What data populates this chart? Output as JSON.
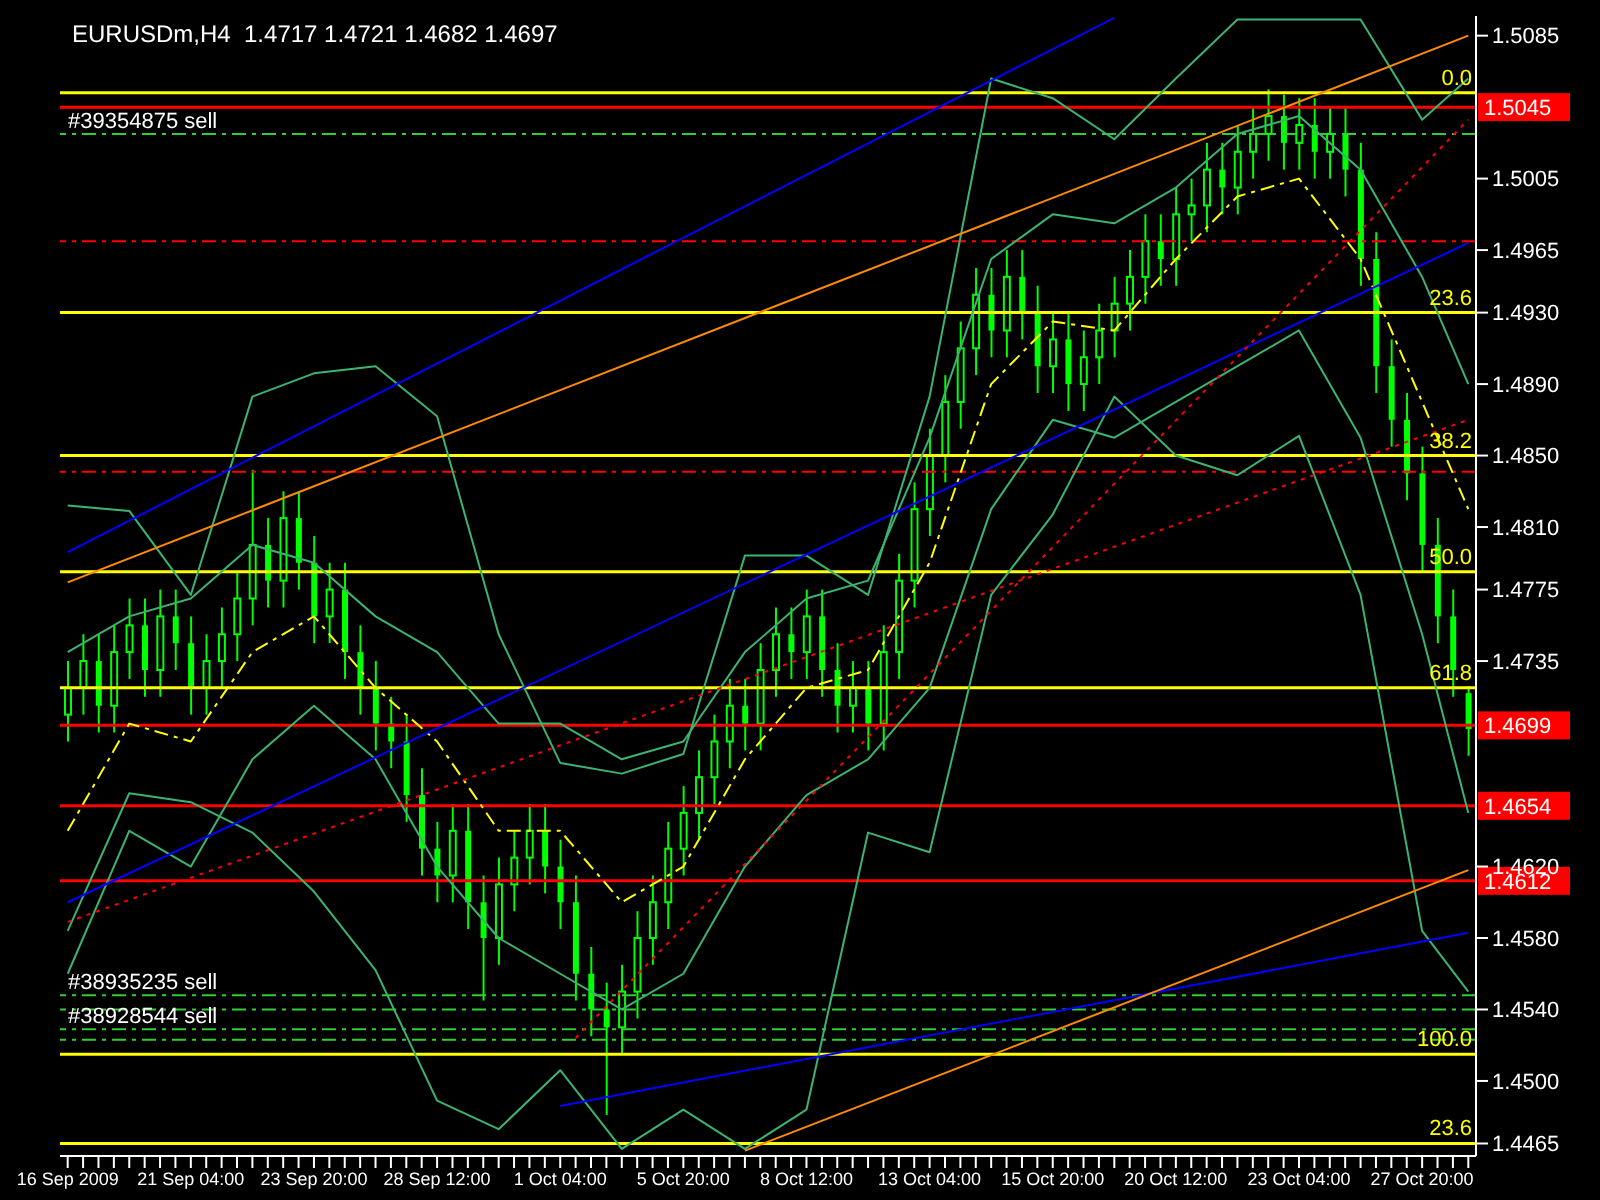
{
  "chart_data": {
    "type": "candlestick",
    "title": "EURUSDm,H4  1.4717 1.4721 1.4682 1.4697",
    "color": "#00ff00",
    "categories": [
      "16 Sep 2009",
      null,
      null,
      null,
      null,
      null,
      null,
      null,
      "21 Sep 04:00",
      null,
      null,
      null,
      null,
      null,
      null,
      null,
      "23 Sep 20:00",
      null,
      null,
      null,
      null,
      null,
      null,
      null,
      "28 Sep 12:00",
      null,
      null,
      null,
      null,
      null,
      null,
      null,
      "1 Oct 04:00",
      null,
      null,
      null,
      null,
      null,
      null,
      null,
      "5 Oct 20:00",
      null,
      null,
      null,
      null,
      null,
      null,
      null,
      "8 Oct 12:00",
      null,
      null,
      null,
      null,
      null,
      null,
      null,
      "13 Oct 04:00",
      null,
      null,
      null,
      null,
      null,
      null,
      null,
      "15 Oct 20:00",
      null,
      null,
      null,
      null,
      null,
      null,
      null,
      "20 Oct 12:00",
      null,
      null,
      null,
      null,
      null,
      null,
      null,
      "23 Oct 04:00",
      null,
      null,
      null,
      null,
      null,
      null,
      null,
      "27 Oct 20:00",
      null,
      null,
      null
    ],
    "ohlc": [
      [
        1.4705,
        1.4735,
        1.469,
        1.472
      ],
      [
        1.472,
        1.475,
        1.4705,
        1.4735
      ],
      [
        1.4735,
        1.475,
        1.4695,
        1.471
      ],
      [
        1.471,
        1.4755,
        1.4695,
        1.474
      ],
      [
        1.474,
        1.477,
        1.4725,
        1.4755
      ],
      [
        1.4755,
        1.477,
        1.4715,
        1.473
      ],
      [
        1.473,
        1.4775,
        1.4715,
        1.476
      ],
      [
        1.476,
        1.4775,
        1.473,
        1.4745
      ],
      [
        1.4745,
        1.476,
        1.4705,
        1.472
      ],
      [
        1.472,
        1.475,
        1.4705,
        1.4735
      ],
      [
        1.4735,
        1.4765,
        1.472,
        1.475
      ],
      [
        1.475,
        1.4785,
        1.4735,
        1.477
      ],
      [
        1.477,
        1.4842,
        1.4755,
        1.48
      ],
      [
        1.48,
        1.4815,
        1.4765,
        1.478
      ],
      [
        1.478,
        1.483,
        1.4765,
        1.4815
      ],
      [
        1.4815,
        1.483,
        1.4775,
        1.479
      ],
      [
        1.479,
        1.4805,
        1.4745,
        1.476
      ],
      [
        1.476,
        1.479,
        1.4745,
        1.4775
      ],
      [
        1.4775,
        1.479,
        1.4725,
        1.474
      ],
      [
        1.474,
        1.4755,
        1.4705,
        1.472
      ],
      [
        1.472,
        1.4735,
        1.4685,
        1.47
      ],
      [
        1.47,
        1.4715,
        1.4675,
        1.469
      ],
      [
        1.469,
        1.4705,
        1.4645,
        1.466
      ],
      [
        1.466,
        1.4675,
        1.4615,
        1.463
      ],
      [
        1.463,
        1.4645,
        1.46,
        1.4615
      ],
      [
        1.4615,
        1.4655,
        1.46,
        1.464
      ],
      [
        1.464,
        1.4655,
        1.4585,
        1.46
      ],
      [
        1.46,
        1.4615,
        1.4545,
        1.458
      ],
      [
        1.458,
        1.4625,
        1.4565,
        1.461
      ],
      [
        1.461,
        1.464,
        1.4595,
        1.4625
      ],
      [
        1.4625,
        1.4655,
        1.461,
        1.464
      ],
      [
        1.464,
        1.4655,
        1.4605,
        1.462
      ],
      [
        1.462,
        1.4635,
        1.4585,
        1.46
      ],
      [
        1.46,
        1.4615,
        1.4545,
        1.456
      ],
      [
        1.456,
        1.4575,
        1.4525,
        1.454
      ],
      [
        1.454,
        1.4555,
        1.4481,
        1.453
      ],
      [
        1.453,
        1.4565,
        1.4515,
        1.455
      ],
      [
        1.455,
        1.4595,
        1.4535,
        1.458
      ],
      [
        1.458,
        1.4615,
        1.4565,
        1.46
      ],
      [
        1.46,
        1.4645,
        1.4585,
        1.463
      ],
      [
        1.463,
        1.4665,
        1.4615,
        1.465
      ],
      [
        1.465,
        1.4685,
        1.4635,
        1.467
      ],
      [
        1.467,
        1.4705,
        1.4655,
        1.469
      ],
      [
        1.469,
        1.4725,
        1.4675,
        1.471
      ],
      [
        1.471,
        1.4725,
        1.4685,
        1.47
      ],
      [
        1.47,
        1.4745,
        1.4685,
        1.473
      ],
      [
        1.473,
        1.4765,
        1.4715,
        1.475
      ],
      [
        1.475,
        1.4765,
        1.4725,
        1.474
      ],
      [
        1.474,
        1.4775,
        1.4725,
        1.476
      ],
      [
        1.476,
        1.4775,
        1.4715,
        1.473
      ],
      [
        1.473,
        1.4745,
        1.4695,
        1.471
      ],
      [
        1.471,
        1.4735,
        1.4695,
        1.472
      ],
      [
        1.472,
        1.4735,
        1.4685,
        1.47
      ],
      [
        1.47,
        1.4755,
        1.4685,
        1.474
      ],
      [
        1.474,
        1.4795,
        1.4725,
        1.478
      ],
      [
        1.478,
        1.4835,
        1.4765,
        1.482
      ],
      [
        1.482,
        1.4865,
        1.4805,
        1.485
      ],
      [
        1.485,
        1.4895,
        1.4835,
        1.488
      ],
      [
        1.488,
        1.4925,
        1.4865,
        1.491
      ],
      [
        1.491,
        1.4955,
        1.4895,
        1.494
      ],
      [
        1.494,
        1.4955,
        1.4905,
        1.492
      ],
      [
        1.492,
        1.4965,
        1.4905,
        1.495
      ],
      [
        1.495,
        1.4965,
        1.4915,
        1.493
      ],
      [
        1.493,
        1.4945,
        1.4885,
        1.49
      ],
      [
        1.49,
        1.493,
        1.4885,
        1.4915
      ],
      [
        1.4915,
        1.493,
        1.4875,
        1.489
      ],
      [
        1.489,
        1.492,
        1.4875,
        1.4905
      ],
      [
        1.4905,
        1.4935,
        1.489,
        1.492
      ],
      [
        1.492,
        1.495,
        1.4905,
        1.4935
      ],
      [
        1.4935,
        1.4965,
        1.492,
        1.495
      ],
      [
        1.495,
        1.4985,
        1.4935,
        1.497
      ],
      [
        1.497,
        1.4985,
        1.4945,
        1.496
      ],
      [
        1.496,
        1.5,
        1.4945,
        1.4985
      ],
      [
        1.4985,
        1.5005,
        1.497,
        1.499
      ],
      [
        1.499,
        1.5025,
        1.4975,
        1.501
      ],
      [
        1.501,
        1.5025,
        1.4985,
        1.5
      ],
      [
        1.5,
        1.5035,
        1.4985,
        1.502
      ],
      [
        1.502,
        1.5045,
        1.5005,
        1.503
      ],
      [
        1.503,
        1.5055,
        1.5015,
        1.504
      ],
      [
        1.504,
        1.5052,
        1.501,
        1.5025
      ],
      [
        1.5025,
        1.505,
        1.501,
        1.5035
      ],
      [
        1.5035,
        1.505,
        1.5005,
        1.502
      ],
      [
        1.502,
        1.5045,
        1.5005,
        1.503
      ],
      [
        1.503,
        1.5045,
        1.4995,
        1.501
      ],
      [
        1.501,
        1.5025,
        1.4945,
        1.496
      ],
      [
        1.496,
        1.4975,
        1.4885,
        1.49
      ],
      [
        1.49,
        1.4915,
        1.4855,
        1.487
      ],
      [
        1.487,
        1.4885,
        1.4825,
        1.484
      ],
      [
        1.484,
        1.4855,
        1.4785,
        1.48
      ],
      [
        1.48,
        1.4815,
        1.4745,
        1.476
      ],
      [
        1.476,
        1.4775,
        1.4715,
        1.473
      ],
      [
        1.4717,
        1.4721,
        1.4682,
        1.4697
      ]
    ],
    "series": [
      {
        "type": "line",
        "color": "#3cb371",
        "values": [
          1.4822,
          null,
          null,
          null,
          1.4819,
          null,
          null,
          null,
          1.4772,
          null,
          null,
          null,
          1.4883,
          null,
          null,
          null,
          1.4896,
          null,
          null,
          null,
          1.49,
          null,
          null,
          null,
          1.4872,
          null,
          null,
          null,
          1.475,
          null,
          null,
          null,
          1.4678,
          null,
          null,
          null,
          1.4672,
          null,
          null,
          null,
          1.4683,
          null,
          null,
          null,
          1.4794,
          null,
          null,
          null,
          1.4794,
          null,
          null,
          null,
          1.4772,
          null,
          null,
          null,
          1.4883,
          null,
          null,
          null,
          1.5061,
          null,
          null,
          null,
          1.505,
          null,
          null,
          null,
          1.5027,
          null,
          null,
          null,
          1.5061,
          null,
          null,
          null,
          1.5094,
          null,
          null,
          null,
          1.5094,
          null,
          null,
          null,
          1.5094,
          null,
          null,
          null,
          1.5038,
          null,
          null,
          1.5061
        ]
      },
      {
        "type": "line",
        "color": "#3cb371",
        "values": [
          1.474,
          null,
          null,
          null,
          1.476,
          null,
          null,
          null,
          1.477,
          null,
          null,
          null,
          1.48,
          null,
          null,
          null,
          1.479,
          null,
          null,
          null,
          1.476,
          null,
          null,
          null,
          1.474,
          null,
          null,
          null,
          1.47,
          null,
          null,
          null,
          1.47,
          null,
          null,
          null,
          1.468,
          null,
          null,
          null,
          1.469,
          null,
          null,
          null,
          1.474,
          null,
          null,
          null,
          1.477,
          null,
          null,
          null,
          1.478,
          null,
          null,
          null,
          1.486,
          null,
          null,
          null,
          1.496,
          null,
          null,
          null,
          1.4985,
          null,
          null,
          null,
          1.498,
          null,
          null,
          null,
          1.5,
          null,
          null,
          null,
          1.503,
          null,
          null,
          null,
          1.504,
          null,
          null,
          null,
          1.501,
          null,
          null,
          null,
          1.495,
          null,
          null,
          1.489
        ]
      },
      {
        "type": "line",
        "color": "#3cb371",
        "values": [
          1.456,
          null,
          null,
          null,
          1.464,
          null,
          null,
          null,
          1.462,
          null,
          null,
          null,
          1.468,
          null,
          null,
          null,
          1.471,
          null,
          null,
          null,
          1.468,
          null,
          null,
          null,
          1.462,
          null,
          null,
          null,
          1.458,
          null,
          null,
          null,
          1.456,
          null,
          null,
          null,
          1.454,
          null,
          null,
          null,
          1.456,
          null,
          null,
          null,
          1.462,
          null,
          null,
          null,
          1.466,
          null,
          null,
          null,
          1.468,
          null,
          null,
          null,
          1.472,
          null,
          null,
          null,
          1.482,
          null,
          null,
          null,
          1.487,
          null,
          null,
          null,
          1.486,
          null,
          null,
          null,
          1.488,
          null,
          null,
          null,
          1.49,
          null,
          null,
          null,
          1.492,
          null,
          null,
          null,
          1.486,
          null,
          null,
          null,
          1.475,
          null,
          null,
          1.465
        ]
      },
      {
        "type": "line",
        "color": "#3cb371",
        "values": [
          1.4584,
          null,
          null,
          null,
          1.4661,
          null,
          null,
          null,
          1.4656,
          null,
          null,
          null,
          1.4639,
          null,
          null,
          null,
          1.4606,
          null,
          null,
          null,
          1.4562,
          null,
          null,
          null,
          1.4489,
          null,
          null,
          null,
          1.4473,
          null,
          null,
          null,
          1.4506,
          null,
          null,
          null,
          1.4462,
          null,
          null,
          null,
          1.4484,
          null,
          null,
          null,
          1.4462,
          null,
          null,
          null,
          1.4484,
          null,
          null,
          null,
          1.4639,
          null,
          null,
          null,
          1.4628,
          null,
          null,
          null,
          1.4772,
          null,
          null,
          null,
          1.4817,
          null,
          null,
          null,
          1.4883,
          null,
          null,
          null,
          1.485,
          null,
          null,
          null,
          1.4839,
          null,
          null,
          null,
          1.4861,
          null,
          null,
          null,
          1.4772,
          null,
          null,
          null,
          1.4584,
          null,
          null,
          1.455
        ]
      },
      {
        "type": "line",
        "color": "#ffff00",
        "line_style": "dashed",
        "values": [
          1.464,
          null,
          null,
          null,
          1.47,
          null,
          null,
          null,
          1.469,
          null,
          null,
          null,
          1.474,
          null,
          null,
          null,
          1.476,
          null,
          null,
          null,
          1.472,
          null,
          null,
          null,
          1.469,
          null,
          null,
          null,
          1.464,
          null,
          null,
          null,
          1.464,
          null,
          null,
          null,
          1.46,
          null,
          null,
          null,
          1.462,
          null,
          null,
          null,
          1.468,
          null,
          null,
          null,
          1.472,
          null,
          null,
          null,
          1.473,
          null,
          null,
          null,
          1.479,
          null,
          null,
          null,
          1.489,
          null,
          null,
          null,
          1.4925,
          null,
          null,
          null,
          1.492,
          null,
          null,
          null,
          1.496,
          null,
          null,
          null,
          1.4995,
          null,
          null,
          null,
          1.5005,
          null,
          null,
          null,
          1.496,
          null,
          null,
          null,
          1.488,
          null,
          null,
          1.482
        ]
      },
      {
        "type": "line",
        "color": "#0000ff",
        "values": [
          1.4796,
          null,
          null,
          null,
          null,
          null,
          null,
          null,
          null,
          null,
          null,
          null,
          null,
          null,
          null,
          null,
          null,
          null,
          null,
          null,
          null,
          null,
          null,
          null,
          null,
          null,
          null,
          null,
          null,
          null,
          null,
          null,
          null,
          null,
          null,
          null,
          null,
          null,
          null,
          null,
          null,
          null,
          null,
          null,
          null,
          null,
          null,
          null,
          null,
          null,
          null,
          null,
          null,
          null,
          null,
          null,
          null,
          null,
          null,
          null,
          null,
          null,
          null,
          null,
          null,
          null,
          null,
          null,
          1.5095,
          null,
          null,
          null,
          null,
          null,
          null,
          null,
          null,
          null,
          null,
          null,
          null,
          null,
          null,
          null,
          null,
          null,
          null,
          null,
          null,
          null,
          null,
          null
        ]
      },
      {
        "type": "line",
        "color": "#0000ff",
        "values": [
          1.46,
          null,
          null,
          null,
          null,
          null,
          null,
          null,
          null,
          null,
          null,
          null,
          null,
          null,
          null,
          null,
          null,
          null,
          null,
          null,
          null,
          null,
          null,
          null,
          null,
          null,
          null,
          null,
          null,
          null,
          null,
          null,
          null,
          null,
          null,
          null,
          null,
          null,
          null,
          null,
          null,
          null,
          null,
          null,
          null,
          null,
          null,
          null,
          null,
          null,
          null,
          null,
          null,
          null,
          null,
          null,
          null,
          null,
          null,
          null,
          null,
          null,
          null,
          null,
          null,
          null,
          null,
          null,
          null,
          null,
          null,
          null,
          null,
          null,
          null,
          null,
          null,
          null,
          null,
          null,
          null,
          null,
          null,
          null,
          null,
          null,
          null,
          null,
          null,
          null,
          null,
          1.4969
        ]
      },
      {
        "type": "line",
        "color": "#0000ff",
        "values": [
          null,
          null,
          null,
          null,
          null,
          null,
          null,
          null,
          null,
          null,
          null,
          null,
          null,
          null,
          null,
          null,
          null,
          null,
          null,
          null,
          null,
          null,
          null,
          null,
          null,
          null,
          null,
          null,
          null,
          null,
          null,
          null,
          1.4486,
          null,
          null,
          null,
          null,
          null,
          null,
          null,
          null,
          null,
          null,
          null,
          null,
          null,
          null,
          null,
          null,
          null,
          null,
          null,
          null,
          null,
          null,
          null,
          null,
          null,
          null,
          null,
          null,
          null,
          null,
          null,
          null,
          null,
          null,
          null,
          null,
          null,
          null,
          null,
          null,
          null,
          null,
          null,
          null,
          null,
          null,
          null,
          null,
          null,
          null,
          null,
          null,
          null,
          null,
          null,
          null,
          null,
          null,
          1.4583
        ]
      },
      {
        "type": "line",
        "color": "#ff8c00",
        "values": [
          1.4779,
          null,
          null,
          null,
          null,
          null,
          null,
          null,
          null,
          null,
          null,
          null,
          null,
          null,
          null,
          null,
          null,
          null,
          null,
          null,
          null,
          null,
          null,
          null,
          null,
          null,
          null,
          null,
          null,
          null,
          null,
          null,
          null,
          null,
          null,
          null,
          null,
          null,
          null,
          null,
          null,
          null,
          null,
          null,
          null,
          null,
          null,
          null,
          null,
          null,
          null,
          null,
          null,
          null,
          null,
          null,
          null,
          null,
          null,
          null,
          null,
          null,
          null,
          null,
          null,
          null,
          null,
          null,
          null,
          null,
          null,
          null,
          null,
          null,
          null,
          null,
          null,
          null,
          null,
          null,
          null,
          null,
          null,
          null,
          null,
          null,
          null,
          null,
          null,
          null,
          null,
          1.5085
        ]
      },
      {
        "type": "line",
        "color": "#ff8c00",
        "values": [
          null,
          null,
          null,
          null,
          null,
          null,
          null,
          null,
          null,
          null,
          null,
          null,
          null,
          null,
          null,
          null,
          null,
          null,
          null,
          null,
          null,
          null,
          null,
          null,
          null,
          null,
          null,
          null,
          null,
          null,
          null,
          null,
          null,
          null,
          null,
          null,
          null,
          null,
          null,
          null,
          null,
          null,
          null,
          null,
          1.4461,
          null,
          null,
          null,
          null,
          null,
          null,
          null,
          null,
          null,
          null,
          null,
          null,
          null,
          null,
          null,
          null,
          null,
          null,
          null,
          null,
          null,
          null,
          null,
          null,
          null,
          null,
          null,
          null,
          null,
          null,
          null,
          null,
          null,
          null,
          null,
          null,
          null,
          null,
          null,
          null,
          null,
          null,
          null,
          null,
          null,
          null,
          1.4618
        ]
      },
      {
        "type": "line",
        "color": "#ff0000",
        "line_style": "dotted",
        "values": [
          1.4589,
          null,
          null,
          null,
          null,
          null,
          null,
          null,
          null,
          null,
          null,
          null,
          null,
          null,
          null,
          null,
          null,
          null,
          null,
          null,
          null,
          null,
          null,
          null,
          null,
          null,
          null,
          null,
          null,
          null,
          null,
          null,
          null,
          null,
          null,
          null,
          null,
          null,
          null,
          null,
          null,
          null,
          null,
          null,
          null,
          null,
          null,
          null,
          null,
          null,
          null,
          null,
          null,
          null,
          null,
          null,
          null,
          null,
          null,
          null,
          null,
          null,
          null,
          null,
          null,
          null,
          null,
          null,
          null,
          null,
          null,
          null,
          null,
          null,
          null,
          null,
          null,
          null,
          null,
          null,
          null,
          null,
          null,
          null,
          null,
          null,
          null,
          null,
          null,
          null,
          null,
          1.487
        ]
      },
      {
        "type": "line",
        "color": "#ff0000",
        "line_style": "dotted",
        "values": [
          null,
          null,
          null,
          null,
          null,
          null,
          null,
          null,
          null,
          null,
          null,
          null,
          null,
          null,
          null,
          null,
          null,
          null,
          null,
          null,
          null,
          null,
          null,
          null,
          null,
          null,
          null,
          null,
          null,
          null,
          null,
          null,
          null,
          1.4524,
          null,
          null,
          null,
          null,
          null,
          null,
          null,
          null,
          null,
          null,
          null,
          null,
          null,
          null,
          null,
          null,
          null,
          null,
          null,
          null,
          null,
          null,
          null,
          null,
          null,
          null,
          null,
          null,
          null,
          null,
          null,
          null,
          null,
          null,
          null,
          null,
          null,
          null,
          null,
          null,
          null,
          null,
          null,
          null,
          null,
          null,
          null,
          null,
          null,
          null,
          null,
          null,
          null,
          null,
          null,
          null,
          null,
          1.5038
        ]
      }
    ],
    "ylim": [
      1.4458,
      1.5096
    ],
    "yticks": [
      1.5085,
      1.5005,
      1.4965,
      {
        "value": 1.493,
        "label": "1.4930"
      },
      {
        "value": 1.489,
        "label": "1.4890"
      },
      {
        "value": 1.485,
        "label": "1.4850"
      },
      {
        "value": 1.481,
        "label": "1.4810"
      },
      1.4775,
      1.4735,
      {
        "value": 1.462,
        "label": "1.4620"
      },
      {
        "value": 1.458,
        "label": "1.4580"
      },
      {
        "value": 1.454,
        "label": "1.4540"
      },
      {
        "value": 1.45,
        "label": "1.4500"
      },
      1.4465
    ],
    "annotations": [
      {
        "text": "0.0",
        "y": 1.5053
      },
      {
        "text": "23.6",
        "y": 1.493
      },
      {
        "text": "38.2",
        "y": 1.485
      },
      {
        "text": "50.0",
        "y": 1.4785
      },
      {
        "text": "61.8",
        "y": 1.472
      },
      {
        "text": "100.0",
        "y": 1.4515
      },
      {
        "text": "23.6",
        "y": 1.4465
      }
    ],
    "ref_lines": [
      {
        "axis": "y",
        "value": 1.5053,
        "color": "#ffff00"
      },
      {
        "axis": "y",
        "value": 1.5045,
        "label": "1.5045",
        "color": "#ff0000"
      },
      {
        "axis": "y",
        "value": 1.503,
        "label": "#39354875 sell",
        "color": "#32cd32",
        "line_style": "dashed"
      },
      {
        "axis": "y",
        "value": 1.497,
        "color": "#ff0000",
        "line_style": "dashed"
      },
      {
        "axis": "y",
        "value": 1.493,
        "color": "#ffff00"
      },
      {
        "axis": "y",
        "value": 1.485,
        "color": "#ffff00"
      },
      {
        "axis": "y",
        "value": 1.4841,
        "color": "#ff0000",
        "line_style": "dashed"
      },
      {
        "axis": "y",
        "value": 1.4785,
        "color": "#ffff00"
      },
      {
        "axis": "y",
        "value": 1.472,
        "color": "#ffff00"
      },
      {
        "axis": "y",
        "value": 1.4699,
        "label": "1.4699",
        "color": "#ff0000"
      },
      {
        "axis": "y",
        "value": 1.4654,
        "label": "1.4654",
        "color": "#ff0000"
      },
      {
        "axis": "y",
        "value": 1.4612,
        "label": "1.4612",
        "color": "#ff0000"
      },
      {
        "axis": "y",
        "value": 1.4548,
        "label": "#38935235 sell",
        "color": "#32cd32",
        "line_style": "dashed"
      },
      {
        "axis": "y",
        "value": 1.454,
        "color": "#32cd32",
        "line_style": "dashed"
      },
      {
        "axis": "y",
        "value": 1.4529,
        "label": "#38928544 sell",
        "color": "#32cd32",
        "line_style": "dashed"
      },
      {
        "axis": "y",
        "value": 1.4523,
        "color": "#32cd32",
        "line_style": "dashed"
      },
      {
        "axis": "y",
        "value": 1.4515,
        "color": "#ffff00"
      },
      {
        "axis": "y",
        "value": 1.4465,
        "color": "#ffff00"
      }
    ]
  }
}
